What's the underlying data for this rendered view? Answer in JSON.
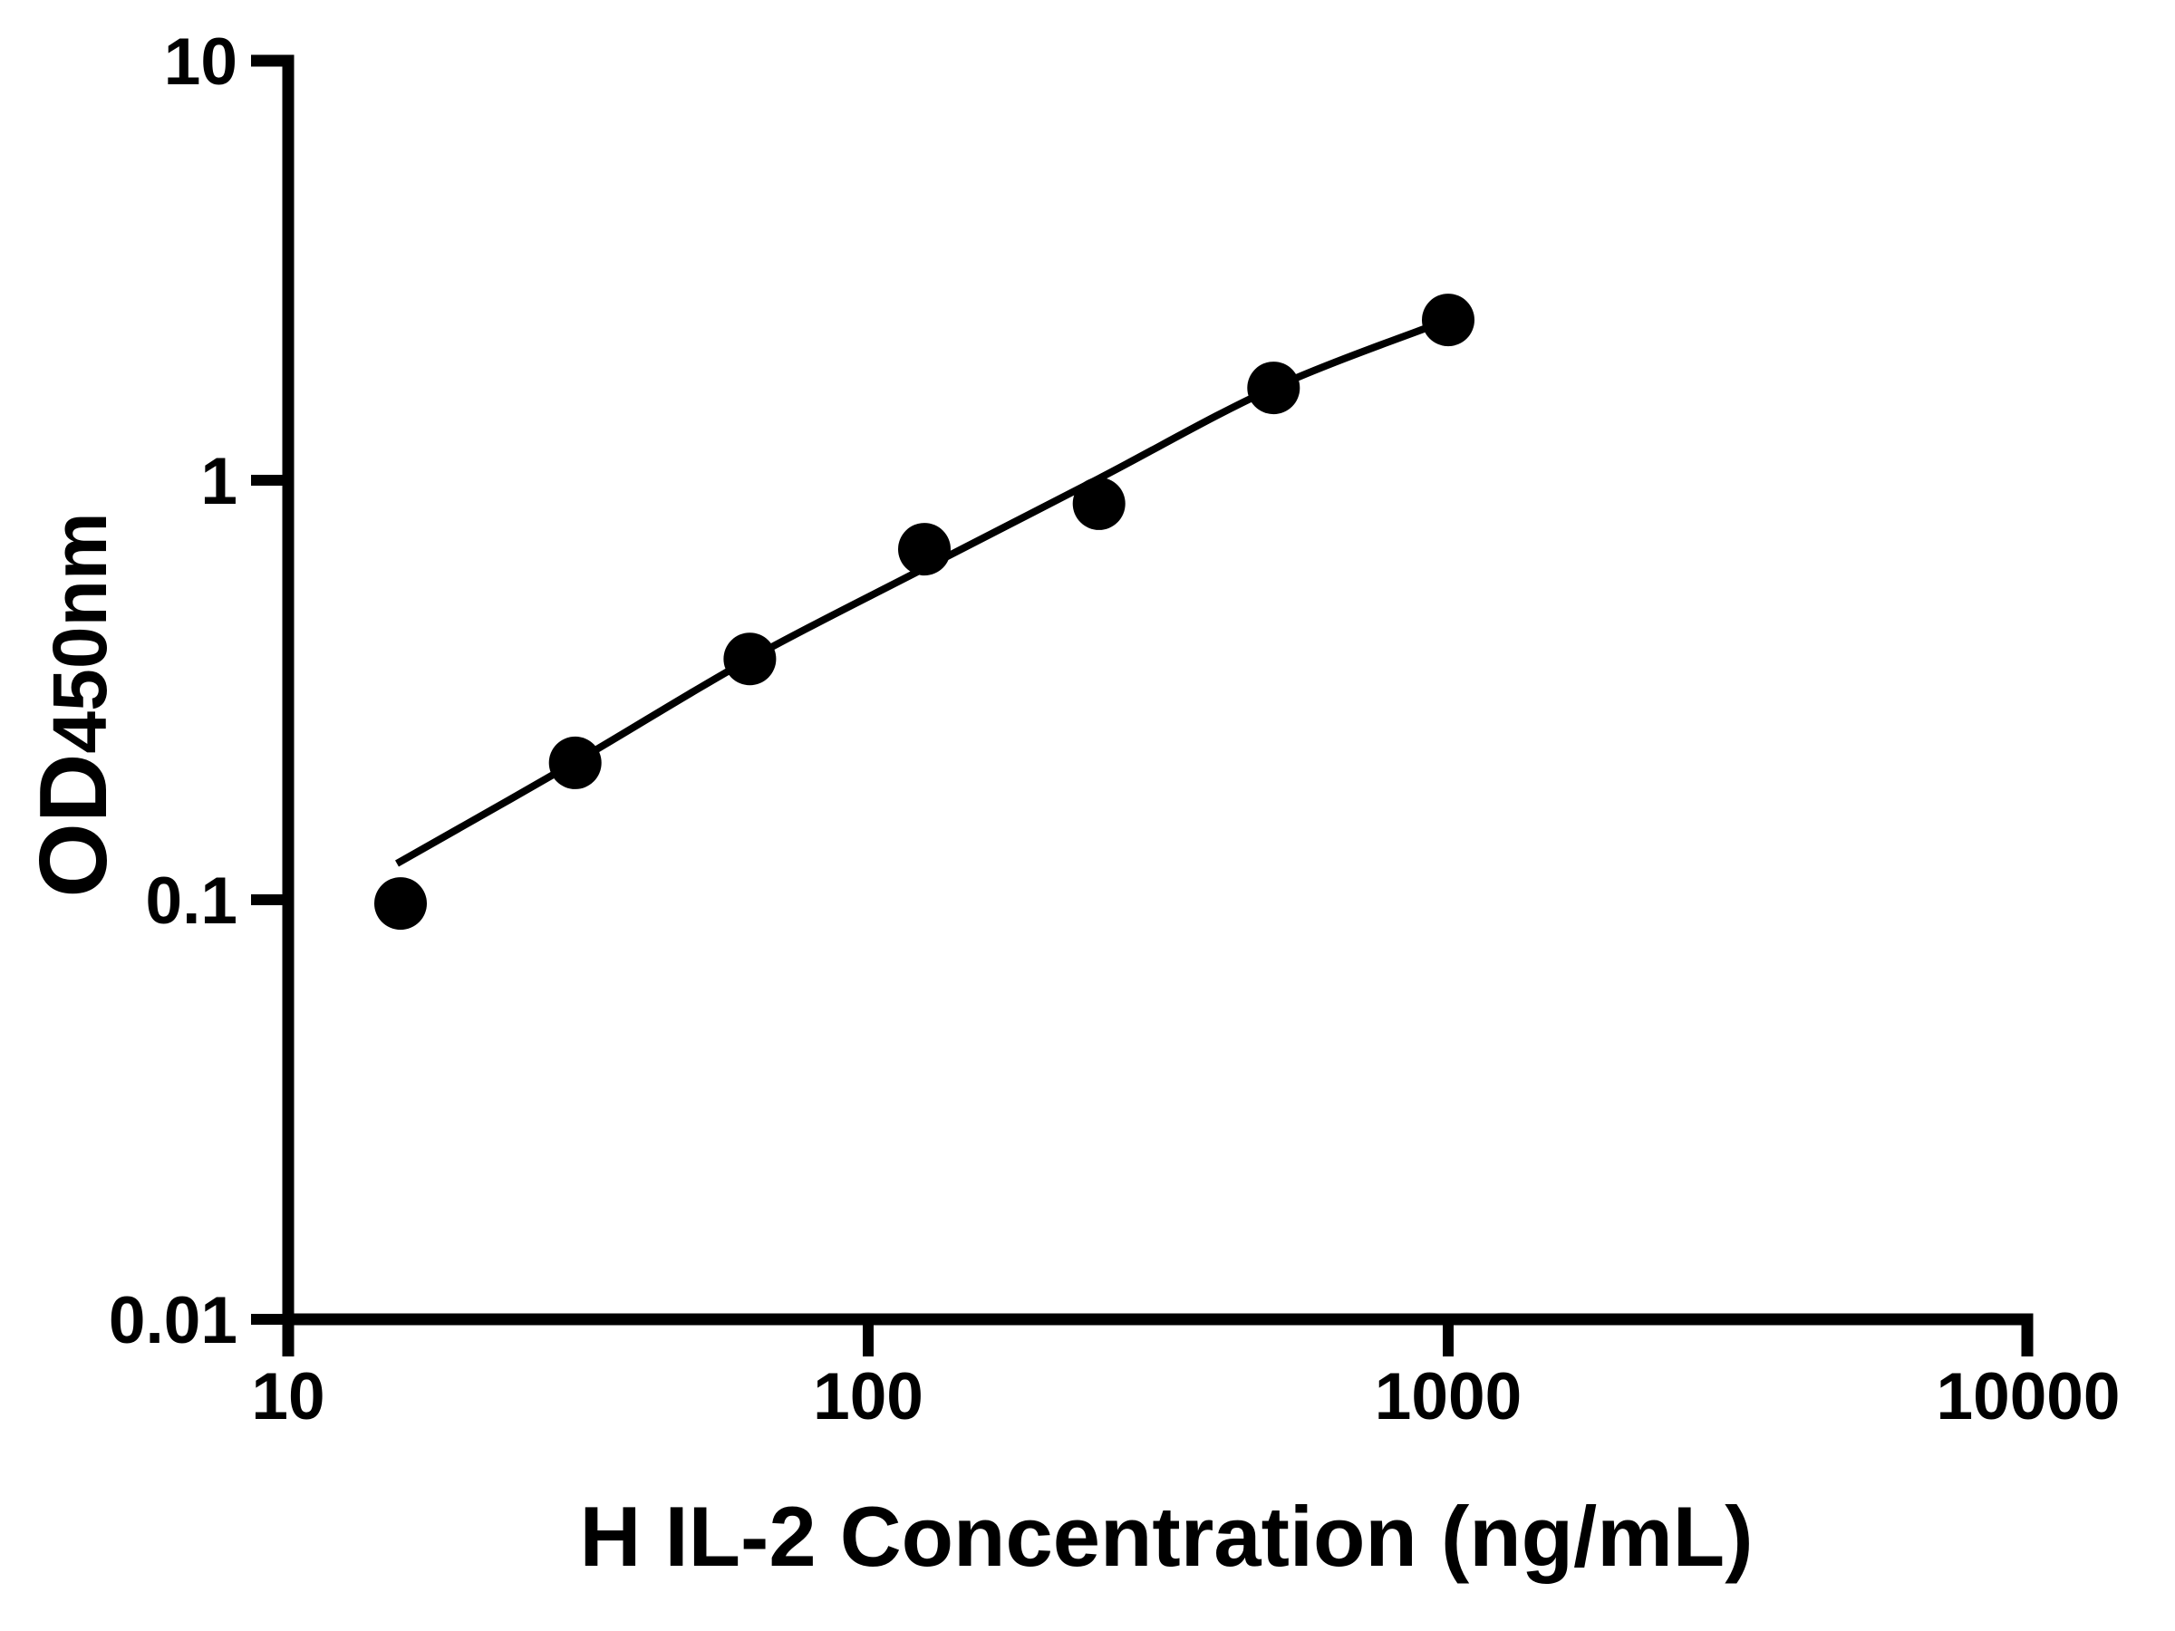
{
  "figure": {
    "background_color": "#ffffff",
    "ink_color": "#000000"
  },
  "chart_data": {
    "type": "scatter",
    "title": "",
    "xlabel": "H IL-2 Concentration (ng/mL)",
    "ylabel_main": "OD",
    "ylabel_sub": "450nm",
    "x_scale": "log10",
    "y_scale": "log10",
    "xlim": [
      10,
      10000
    ],
    "ylim": [
      0.01,
      10
    ],
    "grid": false,
    "legend": "none",
    "x_ticks": [
      {
        "value": 10,
        "label": "10"
      },
      {
        "value": 100,
        "label": "100"
      },
      {
        "value": 1000,
        "label": "1000"
      },
      {
        "value": 10000,
        "label": "10000"
      }
    ],
    "y_ticks": [
      {
        "value": 10,
        "label": "10"
      },
      {
        "value": 1,
        "label": "1"
      },
      {
        "value": 0.1,
        "label": "0.1"
      },
      {
        "value": 0.01,
        "label": "0.01"
      }
    ],
    "series": [
      {
        "name": "standard-curve-points",
        "type": "scatter",
        "marker": "filled-circle",
        "marker_color": "#000000",
        "x": [
          15.625,
          31.25,
          62.5,
          125,
          250,
          500,
          1000
        ],
        "y": [
          0.098,
          0.212,
          0.375,
          0.685,
          0.879,
          1.66,
          2.41
        ]
      },
      {
        "name": "fit-curve",
        "type": "line",
        "line_color": "#000000",
        "x": [
          15.4,
          31.25,
          62.5,
          125,
          250,
          500,
          1000
        ],
        "y": [
          0.122,
          0.213,
          0.375,
          0.617,
          1.01,
          1.661,
          2.411
        ]
      }
    ]
  }
}
